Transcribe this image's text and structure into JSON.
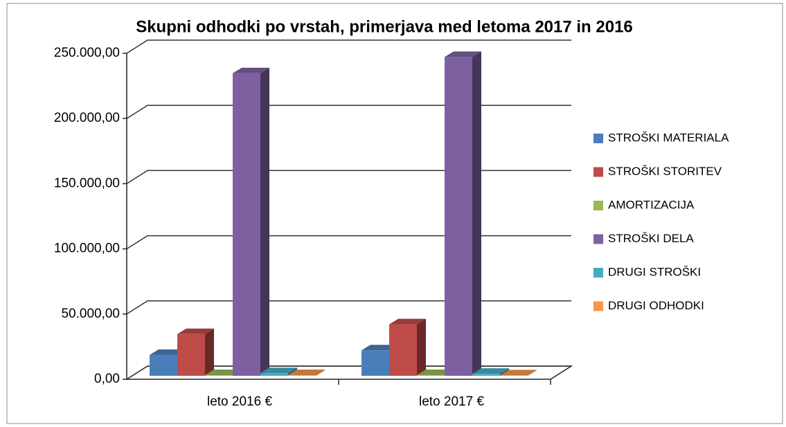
{
  "chart_data": {
    "type": "bar3d",
    "title": "Skupni odhodki po vrstah, primerjava med letoma 2017 in 2016",
    "categories": [
      "leto 2016 €",
      "leto 2017 €"
    ],
    "series": [
      {
        "name": "STROŠKI MATERIALA",
        "color": "#4a7ebb",
        "values": [
          16000,
          19500
        ]
      },
      {
        "name": "STROŠKI STORITEV",
        "color": "#be4b48",
        "values": [
          32000,
          39500
        ]
      },
      {
        "name": "AMORTIZACIJA",
        "color": "#98b954",
        "values": [
          500,
          500
        ]
      },
      {
        "name": "STROŠKI DELA",
        "color": "#7d60a0",
        "values": [
          232000,
          244500
        ]
      },
      {
        "name": "DRUGI STROŠKI",
        "color": "#46aac5",
        "values": [
          2000,
          1500
        ]
      },
      {
        "name": "DRUGI ODHODKI",
        "color": "#f79646",
        "values": [
          500,
          300
        ]
      }
    ],
    "ylim": [
      0,
      250000
    ],
    "yticks": [
      {
        "value": 0,
        "label": "0,00"
      },
      {
        "value": 50000,
        "label": "50.000,00"
      },
      {
        "value": 100000,
        "label": "100.000,00"
      },
      {
        "value": 150000,
        "label": "150.000,00"
      },
      {
        "value": 200000,
        "label": "200.000,00"
      },
      {
        "value": 250000,
        "label": "250.000,00"
      }
    ],
    "grid": true,
    "legend": "right"
  }
}
